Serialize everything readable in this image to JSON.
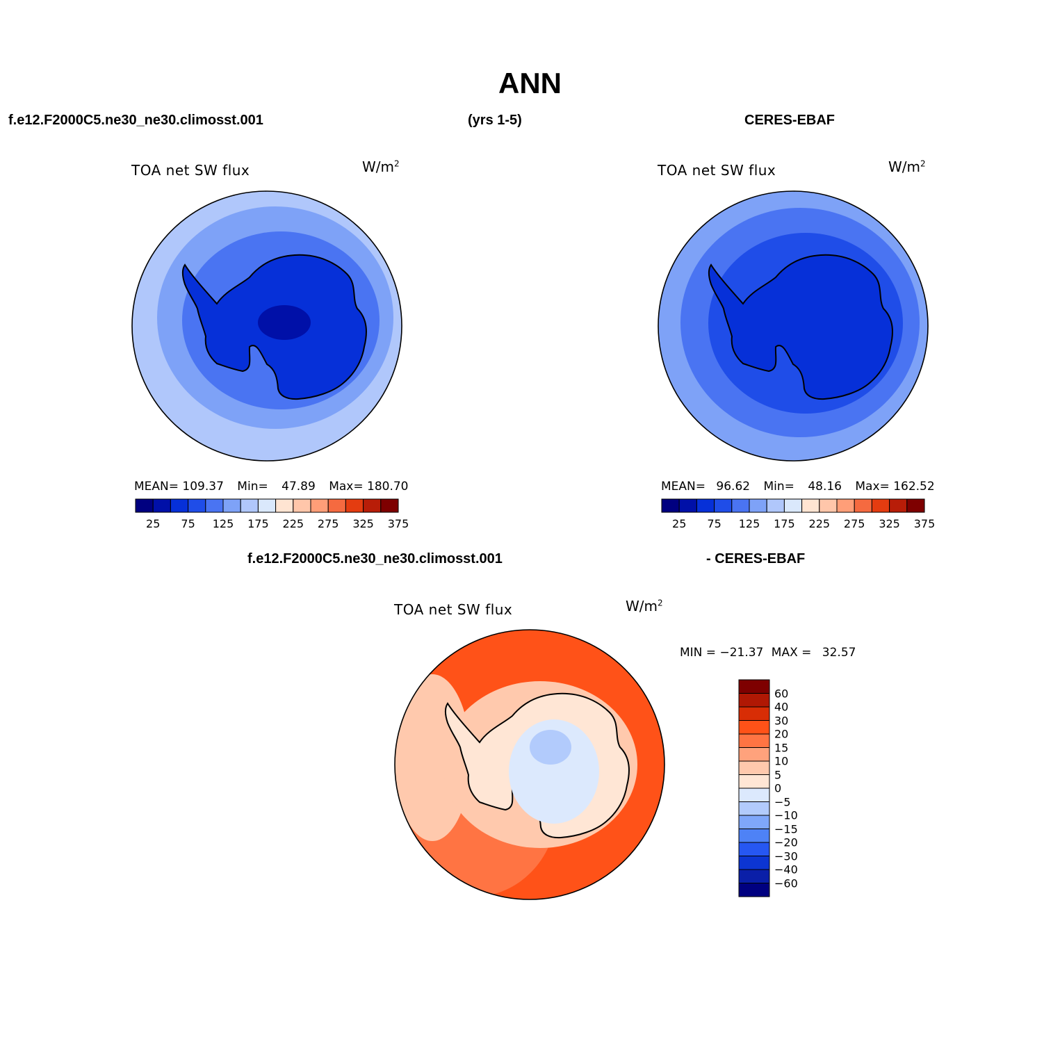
{
  "title": "ANN",
  "header": {
    "case_left": "f.e12.F2000C5.ne30_ne30.climosst.001",
    "years": "(yrs 1-5)",
    "obs_right": "CERES-EBAF"
  },
  "diff_header": {
    "case": "f.e12.F2000C5.ne30_ne30.climosst.001",
    "obs": "- CERES-EBAF"
  },
  "colors": {
    "abs_scale": [
      "#000080",
      "#0010a8",
      "#0630d8",
      "#1f4de8",
      "#4a74f2",
      "#7ea2f7",
      "#b0c7fb",
      "#dae8fc",
      "#ffe4d2",
      "#ffc6aa",
      "#ff9e78",
      "#f56a40",
      "#e43c10",
      "#b81d08",
      "#7e0000"
    ],
    "diff_scale": [
      "#000080",
      "#0a1fa8",
      "#0c35d2",
      "#2657f2",
      "#4e82f6",
      "#7fa7fa",
      "#b2cbfc",
      "#dce9fd",
      "#ffe6d5",
      "#ffc9ad",
      "#ffa27c",
      "#ff7443",
      "#ff5218",
      "#d82d05",
      "#b01804",
      "#7e0000"
    ]
  },
  "panels": [
    {
      "id": "model",
      "label": "TOA net SW flux",
      "units": "W/m",
      "units_sup": "2",
      "stats": {
        "mean_label": "MEAN=",
        "mean": "109.37",
        "min_label": "Min=",
        "min": "47.89",
        "max_label": "Max=",
        "max": "180.70"
      },
      "field": {
        "ocean_outer": "#b0c7fb",
        "ocean_mid": "#7ea2f7",
        "ocean_inner": "#4a74f2",
        "land": "#0630d8",
        "plateau": "#0010a8"
      }
    },
    {
      "id": "obs",
      "label": "TOA net SW flux",
      "units": "W/m",
      "units_sup": "2",
      "stats": {
        "mean_label": "MEAN=",
        "mean": "96.62",
        "min_label": "Min=",
        "min": "48.16",
        "max_label": "Max=",
        "max": "162.52"
      },
      "field": {
        "ocean_outer": "#7ea2f7",
        "ocean_mid": "#4a74f2",
        "ocean_inner": "#1f4de8",
        "land": "#0630d8",
        "plateau": "#0010a8"
      }
    }
  ],
  "abs_colorbar_ticks": [
    "25",
    "75",
    "125",
    "175",
    "225",
    "275",
    "325",
    "375"
  ],
  "diff_panel": {
    "label": "TOA net SW flux",
    "units": "W/m",
    "units_sup": "2",
    "stats": {
      "min_label": "MIN =",
      "min": "−21.37",
      "max_label": "MAX =",
      "max": "32.57"
    },
    "colorbar_ticks": [
      "60",
      "40",
      "30",
      "20",
      "15",
      "10",
      "5",
      "0",
      "−5",
      "−10",
      "−15",
      "−20",
      "−30",
      "−40",
      "−60"
    ]
  }
}
